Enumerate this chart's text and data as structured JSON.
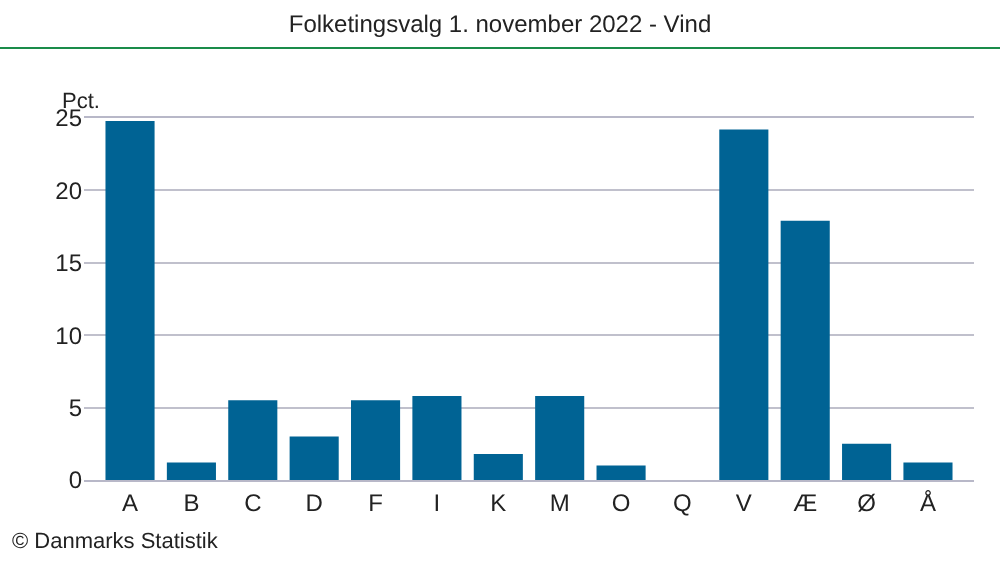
{
  "chart_data": {
    "type": "bar",
    "title": "Folketingsvalg 1. november 2022 - Vind",
    "ylabel": "Pct.",
    "categories": [
      "A",
      "B",
      "C",
      "D",
      "F",
      "I",
      "K",
      "M",
      "O",
      "Q",
      "V",
      "Æ",
      "Ø",
      "Å"
    ],
    "values": [
      24.8,
      1.2,
      5.5,
      3.0,
      5.5,
      5.8,
      1.8,
      5.8,
      1.0,
      0,
      24.2,
      17.9,
      2.5,
      1.2
    ],
    "color": "#006394",
    "ylim": [
      0,
      25
    ],
    "yticks": [
      0,
      5,
      10,
      15,
      20,
      25
    ],
    "grid": "y",
    "annotations": [
      "© Danmarks Statistik"
    ]
  }
}
